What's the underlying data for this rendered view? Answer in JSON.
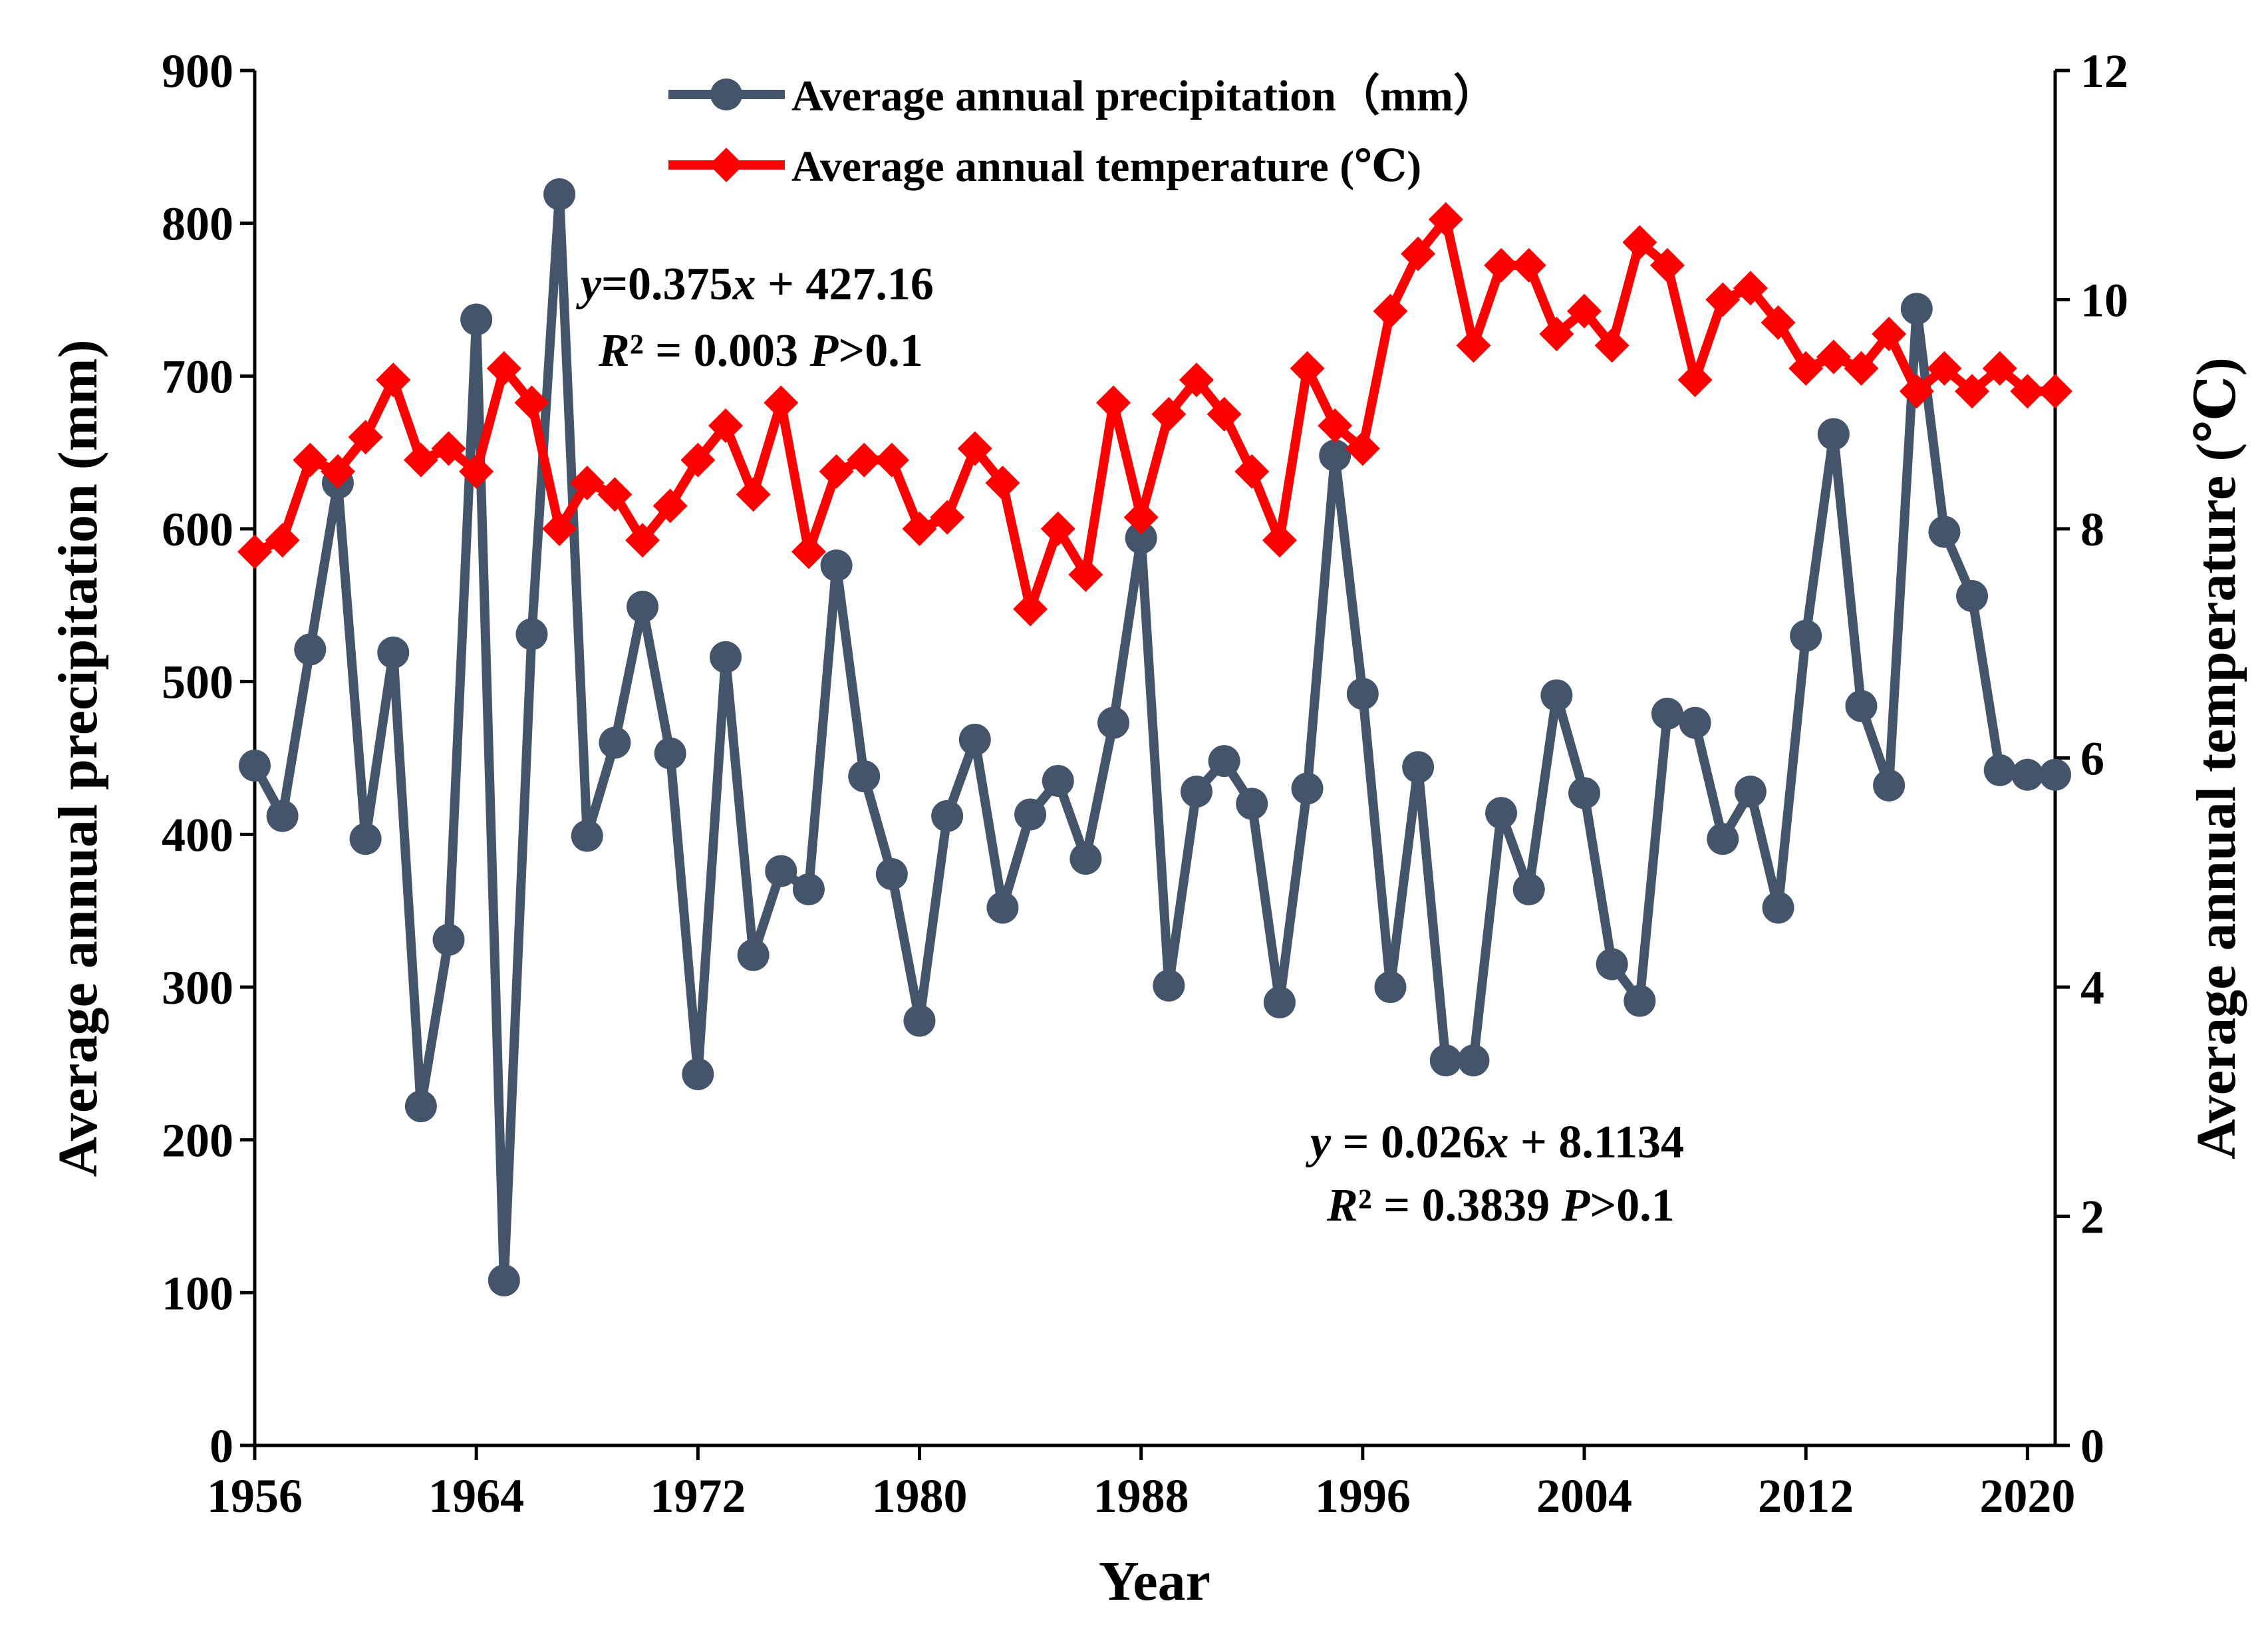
{
  "chart_data": {
    "type": "line",
    "title": "",
    "xlabel": "Year",
    "ylabel_left": "Average annual precipitation (mm)",
    "ylabel_right": "Average annual temperature (℃)",
    "xlim": [
      1956,
      2021
    ],
    "x_ticks": [
      1956,
      1964,
      1972,
      1980,
      1988,
      1996,
      2004,
      2012,
      2020
    ],
    "ylim_left": [
      0,
      900
    ],
    "y_ticks_left": [
      0,
      100,
      200,
      300,
      400,
      500,
      600,
      700,
      800,
      900
    ],
    "ylim_right": [
      0,
      12
    ],
    "y_ticks_right": [
      0,
      2,
      4,
      6,
      8,
      10,
      12
    ],
    "x": [
      1956,
      1957,
      1958,
      1959,
      1960,
      1961,
      1962,
      1963,
      1964,
      1965,
      1966,
      1967,
      1968,
      1969,
      1970,
      1971,
      1972,
      1973,
      1974,
      1975,
      1976,
      1977,
      1978,
      1979,
      1980,
      1981,
      1982,
      1983,
      1984,
      1985,
      1986,
      1987,
      1988,
      1989,
      1990,
      1991,
      1992,
      1993,
      1994,
      1995,
      1996,
      1997,
      1998,
      1999,
      2000,
      2001,
      2002,
      2003,
      2004,
      2005,
      2006,
      2007,
      2008,
      2009,
      2010,
      2011,
      2012,
      2013,
      2014,
      2015,
      2016,
      2017,
      2018,
      2019,
      2020,
      2021
    ],
    "series": [
      {
        "name": "Average annual precipitation（mm）",
        "axis": "left",
        "color": "#44546a",
        "marker": "circle",
        "values": [
          445,
          412,
          521,
          630,
          397,
          519,
          222,
          331,
          737,
          108,
          531,
          819,
          399,
          460,
          549,
          453,
          243,
          516,
          321,
          376,
          364,
          576,
          438,
          374,
          278,
          412,
          462,
          352,
          413,
          435,
          384,
          473,
          594,
          301,
          428,
          448,
          420,
          290,
          430,
          648,
          492,
          300,
          444,
          252,
          252,
          414,
          364,
          491,
          427,
          315,
          291,
          479,
          473,
          397,
          428,
          352,
          530,
          662,
          484,
          432,
          744,
          598,
          556,
          442,
          439,
          439
        ]
      },
      {
        "name": "Average annual temperature (℃)",
        "axis": "right",
        "color": "#ff0000",
        "marker": "diamond",
        "values": [
          7.8,
          7.9,
          8.6,
          8.5,
          8.8,
          9.3,
          8.6,
          8.7,
          8.5,
          9.4,
          9.1,
          8.0,
          8.4,
          8.3,
          7.9,
          8.2,
          8.6,
          8.9,
          8.3,
          9.1,
          7.8,
          8.5,
          8.6,
          8.6,
          8.0,
          8.1,
          8.7,
          8.4,
          7.3,
          8.0,
          7.6,
          9.1,
          8.1,
          9.0,
          9.3,
          9.0,
          8.5,
          7.9,
          9.4,
          8.9,
          8.7,
          9.9,
          10.4,
          10.7,
          9.6,
          10.3,
          10.3,
          9.7,
          9.9,
          9.6,
          10.5,
          10.3,
          9.3,
          10.0,
          10.1,
          9.8,
          9.4,
          9.5,
          9.4,
          9.7,
          9.2,
          9.4,
          9.2,
          9.4,
          9.2,
          9.2
        ]
      }
    ],
    "annotations": [
      {
        "id": "precip-fit",
        "eq_prefix": "y",
        "eq_rest": "=0.375x + 427.16",
        "stats": "R² = 0.003 P>0.1"
      },
      {
        "id": "temp-fit",
        "eq_prefix": "y",
        "eq_rest": " = 0.026x + 8.1134",
        "stats": "R² = 0.3839 P>0.1"
      }
    ],
    "legend": "top-center"
  },
  "text": {
    "xlabel": "Year",
    "ylabel_left": "Average annual precipitation (mm)",
    "ylabel_right": "Average annual temperature (℃)",
    "legend_precip": "Average annual precipitation（mm）",
    "legend_temp": "Average annual temperature (℃)",
    "annot1_y": "y",
    "annot1_eq": "=0.375",
    "annot1_x": "x",
    "annot1_rest": " + 427.16",
    "annot1_r": "R",
    "annot1_stats": "² = 0.003 ",
    "annot1_p": "P",
    "annot1_pv": ">0.1",
    "annot2_y": "y",
    "annot2_eq": " = 0.026",
    "annot2_x": "x",
    "annot2_rest": " + 8.1134",
    "annot2_r": "R",
    "annot2_stats": "² = 0.3839 ",
    "annot2_p": "P",
    "annot2_pv": ">0.1"
  }
}
